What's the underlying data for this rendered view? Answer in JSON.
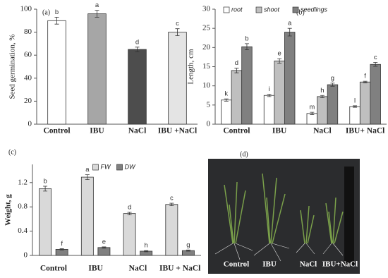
{
  "chart_data": [
    {
      "type": "bar",
      "label": "(a)",
      "ylabel": "Seed germination, %",
      "categories": [
        "Control",
        "IBU",
        "NaCl",
        "IBU +NaCl"
      ],
      "series": [
        {
          "colors": [
            "#ffffff",
            "#a6a6a6",
            "#4d4d4d",
            "#e4e4e4"
          ],
          "values": [
            90,
            96,
            65,
            80
          ],
          "errors": [
            3,
            3,
            2,
            3
          ],
          "letters": [
            "b",
            "a",
            "d",
            "c"
          ]
        }
      ],
      "ylim": [
        0,
        100
      ],
      "yticks": [
        0,
        20,
        40,
        60,
        80,
        100
      ]
    },
    {
      "type": "bar",
      "label": "(b)",
      "ylabel": "Length, cm",
      "legend": "upper left",
      "categories": [
        "Control",
        "IBU",
        "NaCl",
        "IBU+ NaCl"
      ],
      "series": [
        {
          "name": "root",
          "color": "#ffffff",
          "values": [
            6.3,
            7.5,
            2.8,
            4.6
          ],
          "errors": [
            0.3,
            0.3,
            0.3,
            0.2
          ],
          "letters": [
            "k",
            "i",
            "m",
            "l"
          ]
        },
        {
          "name": "shoot",
          "color": "#bfbfbf",
          "values": [
            14,
            16.5,
            7.2,
            11
          ],
          "errors": [
            0.6,
            0.6,
            0.3,
            0.2
          ],
          "letters": [
            "d",
            "e",
            "h",
            "f"
          ]
        },
        {
          "name": "seedlings",
          "color": "#808080",
          "values": [
            20.2,
            24,
            10.3,
            15.6
          ],
          "errors": [
            0.8,
            1,
            0.4,
            0.5
          ],
          "letters": [
            "b",
            "a",
            "g",
            "c"
          ]
        }
      ],
      "ylim": [
        0,
        30
      ],
      "yticks": [
        0,
        5,
        10,
        15,
        20,
        25,
        30
      ]
    },
    {
      "type": "bar",
      "label": "(c)",
      "ylabel": "Weight, g",
      "legend": "upper center",
      "categories": [
        "Control",
        "IBU",
        "NaCl",
        "IBU + NaCl"
      ],
      "series": [
        {
          "name": "FW",
          "color": "#d9d9d9",
          "values": [
            1.1,
            1.29,
            0.69,
            0.84
          ],
          "errors": [
            0.04,
            0.04,
            0.02,
            0.02
          ],
          "letters": [
            "b",
            "a",
            "d",
            "c"
          ]
        },
        {
          "name": "DW",
          "color": "#808080",
          "values": [
            0.1,
            0.13,
            0.07,
            0.08
          ],
          "errors": [
            0.01,
            0.01,
            0.01,
            0.01
          ],
          "letters": [
            "f",
            "e",
            "h",
            "g"
          ]
        }
      ],
      "ylim": [
        0,
        1.5
      ],
      "yticks": [
        0,
        0.4,
        0.8,
        1.2
      ]
    }
  ],
  "photo": {
    "label": "(d)",
    "labels": [
      "Control",
      "IBU",
      "NaCl",
      "IBU+NaCl"
    ]
  }
}
